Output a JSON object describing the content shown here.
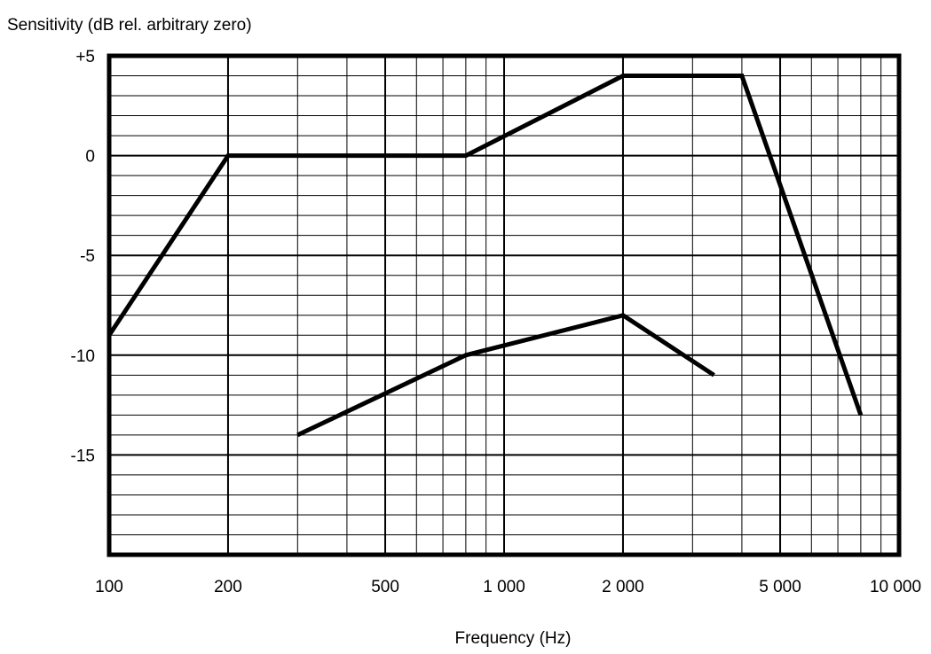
{
  "chart_data": {
    "type": "line",
    "title": "",
    "ylabel": "Sensitivity  (dB rel. arbitrary zero)",
    "xlabel": "Frequency  (Hz)",
    "x_scale": "log",
    "xlim": [
      100,
      10000
    ],
    "ylim": [
      -20,
      5
    ],
    "grid": true,
    "x_ticks": [
      {
        "value": 100,
        "label": "100"
      },
      {
        "value": 200,
        "label": "200"
      },
      {
        "value": 500,
        "label": "500"
      },
      {
        "value": 1000,
        "label": "1 000"
      },
      {
        "value": 2000,
        "label": "2 000"
      },
      {
        "value": 5000,
        "label": "5 000"
      },
      {
        "value": 10000,
        "label": "10 000"
      }
    ],
    "y_ticks": [
      {
        "value": 5,
        "label": "+5"
      },
      {
        "value": 0,
        "label": "0"
      },
      {
        "value": -5,
        "label": "-5"
      },
      {
        "value": -10,
        "label": "-10"
      },
      {
        "value": -15,
        "label": "-15"
      }
    ],
    "series": [
      {
        "points": [
          [
            100,
            -9
          ],
          [
            200,
            0
          ],
          [
            800,
            0
          ],
          [
            2000,
            4
          ],
          [
            4000,
            4
          ],
          [
            8000,
            -13
          ]
        ]
      },
      {
        "points": [
          [
            300,
            -14
          ],
          [
            800,
            -10
          ],
          [
            2000,
            -8
          ],
          [
            3400,
            -11
          ]
        ]
      }
    ]
  }
}
